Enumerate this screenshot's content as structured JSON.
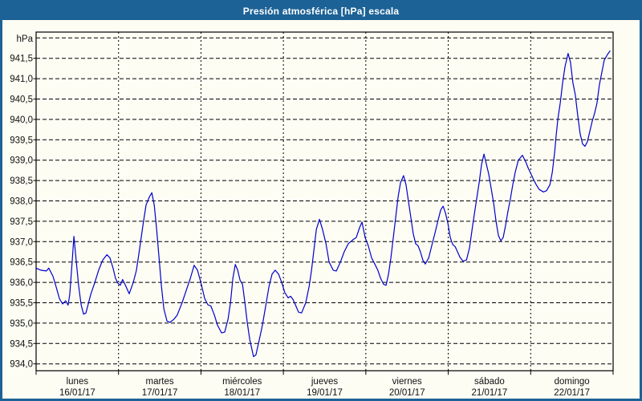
{
  "window": {
    "title": "Presión atmosférica [hPa] escala"
  },
  "colors": {
    "titlebar": "#1c6296",
    "window_border": "#1c6296",
    "background": "#fdfdf4",
    "line": "#0000cc",
    "grid": "#000000",
    "frame": "#000000",
    "text": "#111111"
  },
  "chart_data": {
    "type": "line",
    "title": "Presión atmosférica [hPa] escala",
    "unit_label": "hPa",
    "series_name": "Presión atmosférica",
    "grid": true,
    "legend": "none",
    "ylim": [
      933.8,
      942.15
    ],
    "y_grid_top": 942.0,
    "y_grid_bottom": 934.0,
    "y_step": 0.5,
    "y_ticks": [
      {
        "value": 941.5,
        "label": "941,5"
      },
      {
        "value": 941.0,
        "label": "941,0"
      },
      {
        "value": 940.5,
        "label": "940,5"
      },
      {
        "value": 940.0,
        "label": "940,0"
      },
      {
        "value": 939.5,
        "label": "939,5"
      },
      {
        "value": 939.0,
        "label": "939,0"
      },
      {
        "value": 938.5,
        "label": "938,5"
      },
      {
        "value": 938.0,
        "label": "938,0"
      },
      {
        "value": 937.5,
        "label": "937,5"
      },
      {
        "value": 937.0,
        "label": "937,0"
      },
      {
        "value": 936.5,
        "label": "936,5"
      },
      {
        "value": 936.0,
        "label": "936,0"
      },
      {
        "value": 935.5,
        "label": "935,5"
      },
      {
        "value": 935.0,
        "label": "935,0"
      },
      {
        "value": 934.5,
        "label": "934,5"
      },
      {
        "value": 934.0,
        "label": "934,0"
      }
    ],
    "x_hours_total": 168,
    "x_days": [
      {
        "name": "lunes",
        "date": "16/01/17"
      },
      {
        "name": "martes",
        "date": "17/01/17"
      },
      {
        "name": "miércoles",
        "date": "18/01/17"
      },
      {
        "name": "jueves",
        "date": "19/01/17"
      },
      {
        "name": "viernes",
        "date": "20/01/17"
      },
      {
        "name": "sábado",
        "date": "21/01/17"
      },
      {
        "name": "domingo",
        "date": "22/01/17"
      }
    ],
    "points": [
      [
        0,
        936.35
      ],
      [
        1.4,
        936.3
      ],
      [
        3,
        936.28
      ],
      [
        3.7,
        936.35
      ],
      [
        4.9,
        936.15
      ],
      [
        5.8,
        935.9
      ],
      [
        6.8,
        935.6
      ],
      [
        7.7,
        935.47
      ],
      [
        8.6,
        935.55
      ],
      [
        9.3,
        935.44
      ],
      [
        9.8,
        935.7
      ],
      [
        10.5,
        936.5
      ],
      [
        11,
        937.13
      ],
      [
        11.7,
        936.5
      ],
      [
        12.4,
        935.9
      ],
      [
        13.1,
        935.45
      ],
      [
        13.8,
        935.22
      ],
      [
        14.5,
        935.25
      ],
      [
        15.9,
        935.7
      ],
      [
        17.1,
        936.0
      ],
      [
        18.2,
        936.3
      ],
      [
        19.4,
        936.55
      ],
      [
        20.6,
        936.68
      ],
      [
        21.5,
        936.6
      ],
      [
        22.4,
        936.35
      ],
      [
        23.1,
        936.1
      ],
      [
        23.8,
        935.98
      ],
      [
        24.5,
        935.93
      ],
      [
        25.2,
        936.07
      ],
      [
        25.9,
        935.95
      ],
      [
        27.1,
        935.72
      ],
      [
        28.3,
        936.0
      ],
      [
        29.2,
        936.3
      ],
      [
        30.1,
        936.8
      ],
      [
        31.1,
        937.4
      ],
      [
        32,
        937.9
      ],
      [
        33,
        938.1
      ],
      [
        33.7,
        938.2
      ],
      [
        34.4,
        937.9
      ],
      [
        35.1,
        937.3
      ],
      [
        35.8,
        936.6
      ],
      [
        36.5,
        935.9
      ],
      [
        37.2,
        935.35
      ],
      [
        38.1,
        935.05
      ],
      [
        39,
        935.02
      ],
      [
        40.2,
        935.1
      ],
      [
        41.1,
        935.2
      ],
      [
        42.5,
        935.5
      ],
      [
        43.7,
        935.8
      ],
      [
        44.9,
        936.1
      ],
      [
        46,
        936.42
      ],
      [
        47,
        936.3
      ],
      [
        48.1,
        935.95
      ],
      [
        49.1,
        935.6
      ],
      [
        50,
        935.45
      ],
      [
        50.9,
        935.42
      ],
      [
        51.9,
        935.2
      ],
      [
        52.8,
        934.95
      ],
      [
        54,
        934.76
      ],
      [
        54.9,
        934.78
      ],
      [
        55.9,
        935.1
      ],
      [
        56.6,
        935.5
      ],
      [
        57.3,
        936.1
      ],
      [
        58,
        936.44
      ],
      [
        58.7,
        936.3
      ],
      [
        59.4,
        936.05
      ],
      [
        60.1,
        935.95
      ],
      [
        60.8,
        935.5
      ],
      [
        61.5,
        935.0
      ],
      [
        62.2,
        934.6
      ],
      [
        63.3,
        934.18
      ],
      [
        64,
        934.22
      ],
      [
        65,
        934.6
      ],
      [
        65.9,
        934.95
      ],
      [
        66.8,
        935.4
      ],
      [
        67.8,
        935.9
      ],
      [
        68.7,
        936.2
      ],
      [
        69.6,
        936.3
      ],
      [
        70.6,
        936.2
      ],
      [
        71.5,
        936.0
      ],
      [
        72.4,
        935.75
      ],
      [
        73.4,
        935.62
      ],
      [
        74.1,
        935.66
      ],
      [
        74.8,
        935.58
      ],
      [
        75.5,
        935.45
      ],
      [
        76.4,
        935.27
      ],
      [
        77.3,
        935.25
      ],
      [
        78.5,
        935.5
      ],
      [
        79.5,
        935.9
      ],
      [
        80.2,
        936.3
      ],
      [
        80.9,
        936.8
      ],
      [
        81.6,
        937.3
      ],
      [
        82.5,
        937.55
      ],
      [
        83.4,
        937.3
      ],
      [
        84.4,
        936.95
      ],
      [
        85.3,
        936.5
      ],
      [
        86.5,
        936.3
      ],
      [
        87.4,
        936.28
      ],
      [
        88.6,
        936.5
      ],
      [
        89.7,
        936.75
      ],
      [
        90.9,
        936.95
      ],
      [
        92.3,
        937.05
      ],
      [
        93.2,
        937.1
      ],
      [
        94.2,
        937.35
      ],
      [
        94.9,
        937.48
      ],
      [
        95.8,
        937.1
      ],
      [
        96.7,
        936.9
      ],
      [
        97.7,
        936.6
      ],
      [
        98.6,
        936.45
      ],
      [
        99.5,
        936.3
      ],
      [
        100.3,
        936.1
      ],
      [
        101.2,
        935.95
      ],
      [
        101.9,
        935.93
      ],
      [
        102.6,
        936.2
      ],
      [
        103.3,
        936.6
      ],
      [
        104,
        937.1
      ],
      [
        104.7,
        937.6
      ],
      [
        105.4,
        938.1
      ],
      [
        106.1,
        938.45
      ],
      [
        107,
        938.62
      ],
      [
        107.7,
        938.4
      ],
      [
        108.4,
        938.0
      ],
      [
        109.1,
        937.6
      ],
      [
        109.8,
        937.2
      ],
      [
        110.5,
        936.95
      ],
      [
        111.2,
        936.9
      ],
      [
        111.9,
        936.75
      ],
      [
        112.6,
        936.55
      ],
      [
        113.3,
        936.45
      ],
      [
        114.3,
        936.6
      ],
      [
        115.2,
        936.9
      ],
      [
        116.1,
        937.2
      ],
      [
        117.1,
        937.55
      ],
      [
        117.8,
        937.78
      ],
      [
        118.5,
        937.87
      ],
      [
        119.2,
        937.7
      ],
      [
        119.9,
        937.45
      ],
      [
        120.6,
        937.1
      ],
      [
        121.3,
        936.93
      ],
      [
        122,
        936.88
      ],
      [
        122.7,
        936.75
      ],
      [
        123.4,
        936.62
      ],
      [
        124.3,
        936.52
      ],
      [
        125.3,
        936.55
      ],
      [
        126.2,
        936.85
      ],
      [
        127.1,
        937.4
      ],
      [
        128.1,
        937.95
      ],
      [
        129,
        938.45
      ],
      [
        129.7,
        938.9
      ],
      [
        130.4,
        939.15
      ],
      [
        131.1,
        938.9
      ],
      [
        131.8,
        938.65
      ],
      [
        132.5,
        938.3
      ],
      [
        133.2,
        937.95
      ],
      [
        133.9,
        937.5
      ],
      [
        134.6,
        937.15
      ],
      [
        135.3,
        937.02
      ],
      [
        136,
        937.1
      ],
      [
        136.7,
        937.4
      ],
      [
        137.4,
        937.75
      ],
      [
        138.1,
        938.05
      ],
      [
        138.8,
        938.4
      ],
      [
        139.5,
        938.7
      ],
      [
        140.4,
        939.0
      ],
      [
        141.6,
        939.12
      ],
      [
        142.6,
        938.95
      ],
      [
        143.3,
        938.8
      ],
      [
        144,
        938.68
      ],
      [
        144.7,
        938.55
      ],
      [
        145.6,
        938.4
      ],
      [
        146.5,
        938.28
      ],
      [
        147.7,
        938.22
      ],
      [
        148.6,
        938.25
      ],
      [
        149.6,
        938.4
      ],
      [
        150.3,
        938.7
      ],
      [
        151,
        939.2
      ],
      [
        151.4,
        939.6
      ],
      [
        151.9,
        940.0
      ],
      [
        152.6,
        940.4
      ],
      [
        153.3,
        940.9
      ],
      [
        154,
        941.3
      ],
      [
        154.9,
        941.62
      ],
      [
        155.6,
        941.4
      ],
      [
        156.3,
        940.9
      ],
      [
        157,
        940.6
      ],
      [
        157.7,
        940.1
      ],
      [
        158.4,
        939.65
      ],
      [
        159.1,
        939.4
      ],
      [
        159.8,
        939.34
      ],
      [
        160.5,
        939.45
      ],
      [
        161.2,
        939.7
      ],
      [
        161.9,
        939.95
      ],
      [
        162.6,
        940.15
      ],
      [
        163.3,
        940.4
      ],
      [
        164,
        940.85
      ],
      [
        164.7,
        941.15
      ],
      [
        165.4,
        941.45
      ],
      [
        166.4,
        941.6
      ],
      [
        167.1,
        941.68
      ]
    ]
  }
}
